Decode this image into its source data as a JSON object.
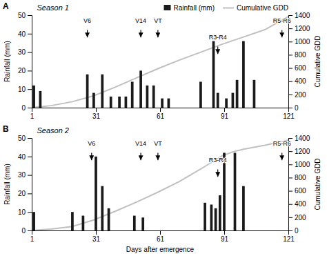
{
  "chart_data": [
    {
      "type": "bar",
      "title": "Season 1",
      "panel_label": "A",
      "ylabel": "Rainfall (mm)",
      "y2label": "Cumulative GDD",
      "xlim": [
        1,
        121
      ],
      "xticks": [
        1,
        31,
        61,
        91,
        121
      ],
      "ylim": [
        0,
        50
      ],
      "yticks": [
        0,
        10,
        20,
        30,
        40,
        50
      ],
      "y2lim": [
        0,
        1400
      ],
      "y2ticks": [
        0,
        200,
        400,
        600,
        800,
        1000,
        1200,
        1400
      ],
      "legend": "top",
      "series": [
        {
          "name": "Rainfall (mm)",
          "type": "bar",
          "color": "#1a1a1a",
          "x": [
            2,
            5,
            27,
            30,
            34,
            38,
            42,
            45,
            48,
            52,
            55,
            58,
            62,
            65,
            80,
            86,
            88,
            92,
            95,
            97,
            100,
            105
          ],
          "values": [
            12,
            9,
            18,
            8,
            18,
            6,
            6,
            6,
            14,
            20,
            12,
            12,
            5,
            5,
            14,
            36,
            8,
            5,
            8,
            15,
            36,
            15
          ]
        },
        {
          "name": "Cumulative GDD",
          "type": "line",
          "axis": "y2",
          "color": "#c0c0c0",
          "x": [
            1,
            10,
            20,
            30,
            40,
            50,
            60,
            70,
            80,
            90,
            100,
            110,
            121
          ],
          "values": [
            0,
            30,
            90,
            180,
            310,
            450,
            590,
            720,
            840,
            960,
            1070,
            1180,
            1380
          ]
        }
      ],
      "annotations": [
        {
          "label": "V6",
          "x": 27,
          "y": 38,
          "y_from": 42,
          "text_y": 45.5
        },
        {
          "label": "V14",
          "x": 52,
          "y": 38,
          "y_from": 42,
          "text_y": 45.5
        },
        {
          "label": "VT",
          "x": 60,
          "y": 38,
          "y_from": 42,
          "text_y": 45.5
        },
        {
          "label": "R3-R4",
          "x": 88,
          "y": 29,
          "y_from": 33,
          "text_y": 36.5
        },
        {
          "label": "R5-R6",
          "x": 118,
          "y": 38,
          "y_from": 42,
          "text_y": 45.5
        }
      ]
    },
    {
      "type": "bar",
      "title": "Season 2",
      "panel_label": "B",
      "xlabel": "Days after emergence",
      "ylabel": "Rainfall (mm)",
      "y2label": "Cumulative GDD",
      "xlim": [
        1,
        121
      ],
      "xticks": [
        1,
        31,
        61,
        91,
        121
      ],
      "ylim": [
        0,
        50
      ],
      "yticks": [
        0,
        10,
        20,
        30,
        40,
        50
      ],
      "y2lim": [
        0,
        1400
      ],
      "y2ticks": [
        0,
        200,
        400,
        600,
        800,
        1000,
        1200,
        1400
      ],
      "series": [
        {
          "type": "bar",
          "color": "#1a1a1a",
          "x": [
            2,
            20,
            25,
            31,
            34,
            37,
            49,
            53,
            82,
            85,
            87,
            89,
            91,
            96,
            100
          ],
          "values": [
            10,
            10,
            8,
            40,
            24,
            12,
            8,
            7,
            15,
            14,
            12,
            19,
            42,
            42,
            24
          ]
        },
        {
          "type": "line",
          "axis": "y2",
          "color": "#c0c0c0",
          "x": [
            1,
            10,
            20,
            30,
            40,
            50,
            60,
            70,
            80,
            90,
            95,
            100,
            110,
            121
          ],
          "values": [
            0,
            20,
            60,
            160,
            290,
            430,
            580,
            740,
            930,
            1130,
            1190,
            1230,
            1290,
            1370
          ]
        }
      ],
      "annotations": [
        {
          "label": "V6",
          "x": 29,
          "y": 38,
          "y_from": 42,
          "text_y": 45.5
        },
        {
          "label": "V14",
          "x": 52,
          "y": 38,
          "y_from": 42,
          "text_y": 45.5
        },
        {
          "label": "VT",
          "x": 60,
          "y": 38,
          "y_from": 42,
          "text_y": 45.5
        },
        {
          "label": "R3-R4",
          "x": 88,
          "y": 29,
          "y_from": 33,
          "text_y": 36.5
        },
        {
          "label": "R5-R6",
          "x": 118,
          "y": 38,
          "y_from": 42,
          "text_y": 45.5
        }
      ]
    }
  ]
}
